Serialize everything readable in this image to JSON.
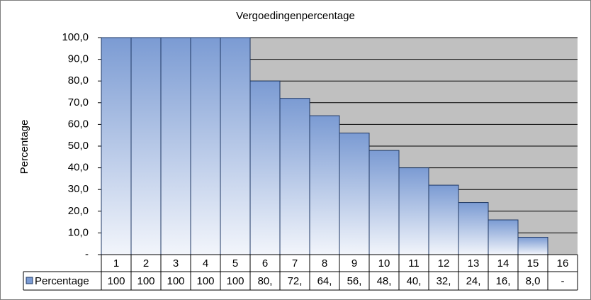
{
  "chart_data": {
    "type": "bar",
    "title": "Vergoedingenpercentage",
    "y_label": "Percentage",
    "categories": [
      "1",
      "2",
      "3",
      "4",
      "5",
      "6",
      "7",
      "8",
      "9",
      "10",
      "11",
      "12",
      "13",
      "14",
      "15",
      "16"
    ],
    "series": [
      {
        "name": "Percentage",
        "color": "#7b9bd3",
        "values": [
          100,
          100,
          100,
          100,
          100,
          80,
          72,
          64,
          56,
          48,
          40,
          32,
          24,
          16,
          8,
          0
        ],
        "value_labels": [
          "100",
          "100",
          "100",
          "100",
          "100",
          "80,",
          "72,",
          "64,",
          "56,",
          "48,",
          "40,",
          "32,",
          "24,",
          "16,",
          "8,0",
          "-"
        ]
      }
    ],
    "ylim": [
      0,
      100
    ],
    "yticks": [
      {
        "value": 0,
        "label": "-"
      },
      {
        "value": 10,
        "label": "10,0"
      },
      {
        "value": 20,
        "label": "20,0"
      },
      {
        "value": 30,
        "label": "30,0"
      },
      {
        "value": 40,
        "label": "40,0"
      },
      {
        "value": 50,
        "label": "50,0"
      },
      {
        "value": 60,
        "label": "60,0"
      },
      {
        "value": 70,
        "label": "70,0"
      },
      {
        "value": 80,
        "label": "80,0"
      },
      {
        "value": 90,
        "label": "90,0"
      },
      {
        "value": 100,
        "label": "100,0"
      }
    ],
    "grid": true
  }
}
